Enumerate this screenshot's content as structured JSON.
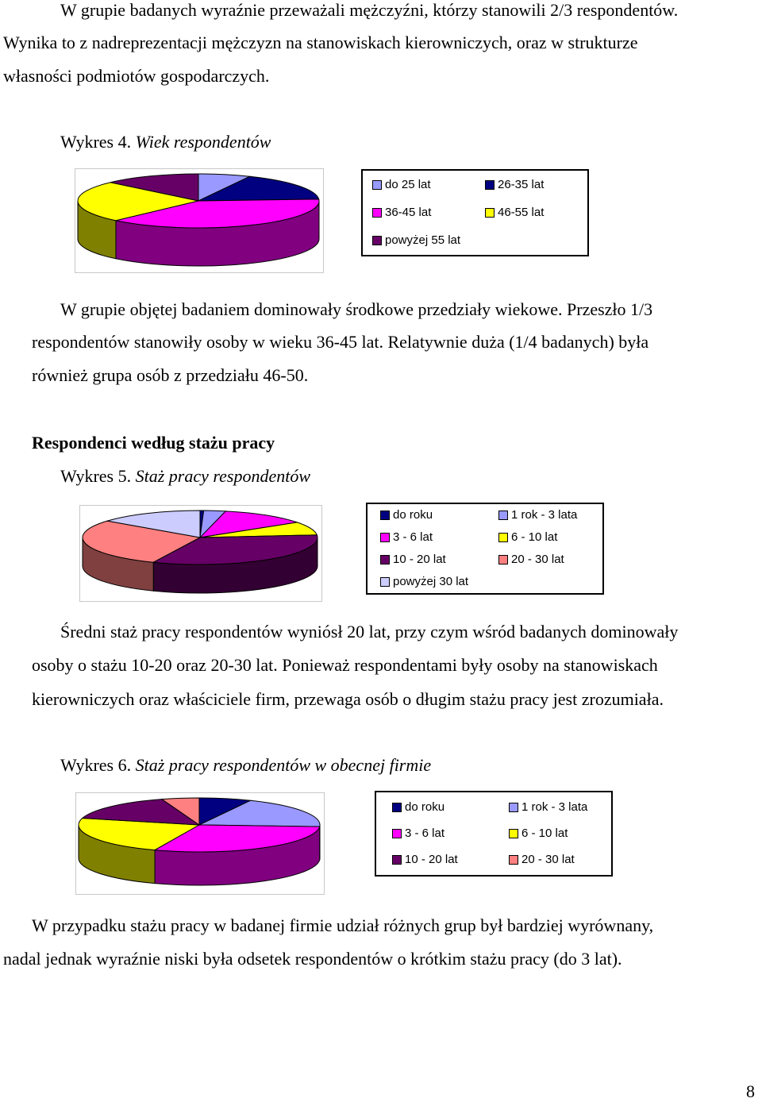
{
  "intro": {
    "line1": "W grupie badanych wyraźnie przeważali mężczyźni, którzy stanowili 2/3 respondentów.",
    "line2": "Wynika to z nadreprezentacji mężczyzn na stanowiskach kierowniczych, oraz w strukturze",
    "line3": "własności podmiotów gospodarczych."
  },
  "chart4": {
    "caption_prefix": "Wykres 4.",
    "caption_title": "Wiek  respondentów",
    "legend": [
      "do 25 lat",
      "26-35 lat",
      "36-45 lat",
      "46-55 lat",
      "powyżej 55 lat"
    ]
  },
  "para1": {
    "line1": "W grupie objętej badaniem dominowały środkowe przedziały wiekowe. Przeszło 1/3",
    "line2": "respondentów stanowiły osoby w wieku 36-45 lat. Relatywnie duża (1/4 badanych) była",
    "line3": "również grupa  osób z przedziału 46-50."
  },
  "section_heading": "Respondenci według stażu pracy",
  "chart5": {
    "caption_prefix": "Wykres 5.",
    "caption_title": "Staż pracy respondentów",
    "legend": [
      "do roku",
      "1 rok - 3 lata",
      "3 - 6 lat",
      "6 - 10 lat",
      "10 - 20 lat",
      "20 - 30 lat",
      "powyżej 30 lat"
    ]
  },
  "para2": {
    "line1": "Średni staż pracy respondentów wyniósł 20 lat, przy czym wśród badanych dominowały",
    "line2": "osoby o stażu 10-20 oraz 20-30 lat. Ponieważ respondentami były osoby na stanowiskach",
    "line3": "kierowniczych oraz właściciele firm, przewaga osób o długim stażu pracy jest zrozumiała."
  },
  "chart6": {
    "caption_prefix": "Wykres 6.",
    "caption_title": "Staż pracy respondentów w obecnej firmie",
    "legend": [
      "do roku",
      "1 rok - 3 lata",
      "3 - 6 lat",
      "6 - 10 lat",
      "10 - 20 lat",
      "20 - 30 lat"
    ]
  },
  "para3": {
    "line1": "W przypadku stażu pracy w badanej firmie udział różnych grup był bardziej wyrównany,",
    "line2": "nadal jednak wyraźnie niski była odsetek respondentów o krótkim stażu pracy (do 3 lat)."
  },
  "page_number": "8",
  "chart_data": [
    {
      "type": "pie",
      "title": "Wiek  respondentów",
      "categories": [
        "do 25 lat",
        "26-35 lat",
        "36-45 lat",
        "46-55 lat",
        "powyżej 55 lat"
      ],
      "values": [
        7,
        17,
        38,
        25,
        13
      ],
      "colors": [
        "#9999ff",
        "#000080",
        "#ff00ff",
        "#ffff00",
        "#660066"
      ]
    },
    {
      "type": "pie",
      "title": "Staż pracy respondentów",
      "categories": [
        "do roku",
        "1 rok - 3 lata",
        "3 - 6 lat",
        "6 - 10 lat",
        "10 - 20 lat",
        "20 - 30 lat",
        "powyżej 30 lat"
      ],
      "values": [
        0.5,
        3,
        12,
        8,
        33,
        29,
        14.5
      ],
      "colors": [
        "#000080",
        "#9999ff",
        "#ff00ff",
        "#ffff00",
        "#660066",
        "#ff8080",
        "#ccccff"
      ]
    },
    {
      "type": "pie",
      "title": "Staż pracy respondentów w obecnej firmie",
      "categories": [
        "do roku",
        "1 rok - 3 lata",
        "3 - 6 lat",
        "6 - 10 lat",
        "10 - 20 lat",
        "20 - 30 lat"
      ],
      "values": [
        7,
        19,
        30,
        23,
        16,
        5
      ],
      "colors": [
        "#000080",
        "#9999ff",
        "#ff00ff",
        "#ffff00",
        "#660066",
        "#ff8080"
      ]
    }
  ]
}
